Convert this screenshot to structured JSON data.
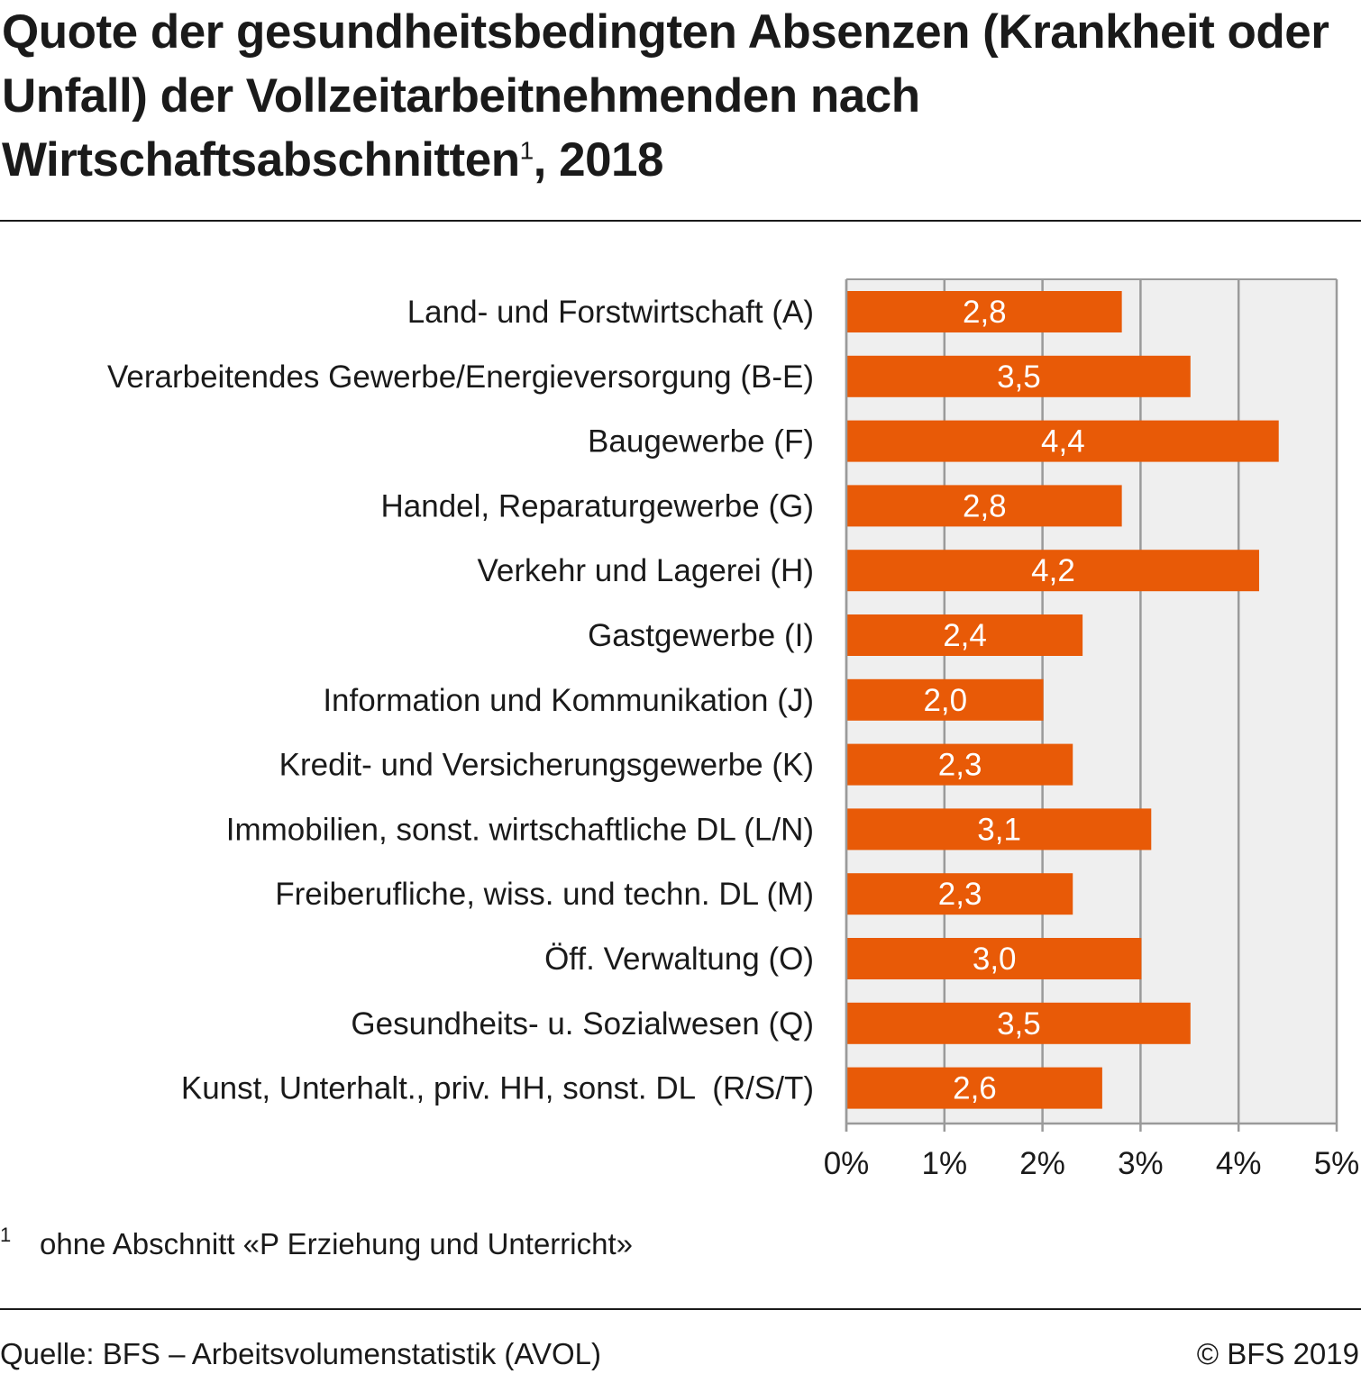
{
  "title": {
    "text": "Quote der gesundheitsbedingten Absenzen (Krankheit oder Unfall) der Vollzeitarbeitnehmenden nach Wirtschaftsabschnitten",
    "footnote_ref": "1",
    "suffix": ", 2018"
  },
  "footnote": {
    "mark": "1",
    "text": "ohne Abschnitt «P Erziehung und Unterricht»"
  },
  "source": "Quelle: BFS – Arbeitsvolumenstatistik (AVOL)",
  "copyright": "© BFS 2019",
  "colors": {
    "bar": "#e85a07",
    "plot_background": "#efefef",
    "grid": "#9a9a9a",
    "bar_label": "#ffffff"
  },
  "chart_data": {
    "type": "bar",
    "orientation": "horizontal",
    "categories": [
      "Land- und Forstwirtschaft (A)",
      "Verarbeitendes Gewerbe/Energieversorgung (B-E)",
      "Baugewerbe (F)",
      "Handel, Reparaturgewerbe (G)",
      "Verkehr und Lagerei (H)",
      "Gastgewerbe (I)",
      "Information und Kommunikation (J)",
      "Kredit- und Versicherungsgewerbe (K)",
      "Immobilien, sonst. wirtschaftliche DL (L/N)",
      "Freiberufliche, wiss. und techn. DL (M)",
      "Öff. Verwaltung (O)",
      "Gesundheits- u. Sozialwesen (Q)",
      "Kunst, Unterhalt., priv. HH, sonst. DL  (R/S/T)"
    ],
    "values": [
      2.8,
      3.5,
      4.4,
      2.8,
      4.2,
      2.4,
      2.0,
      2.3,
      3.1,
      2.3,
      3.0,
      3.5,
      2.6
    ],
    "value_labels": [
      "2,8",
      "3,5",
      "4,4",
      "2,8",
      "4,2",
      "2,4",
      "2,0",
      "2,3",
      "3,1",
      "2,3",
      "3,0",
      "3,5",
      "2,6"
    ],
    "xlim": [
      0,
      5
    ],
    "xticks": [
      0,
      1,
      2,
      3,
      4,
      5
    ],
    "xtick_labels": [
      "0%",
      "1%",
      "2%",
      "3%",
      "4%",
      "5%"
    ],
    "grid": true,
    "legend": "none"
  }
}
